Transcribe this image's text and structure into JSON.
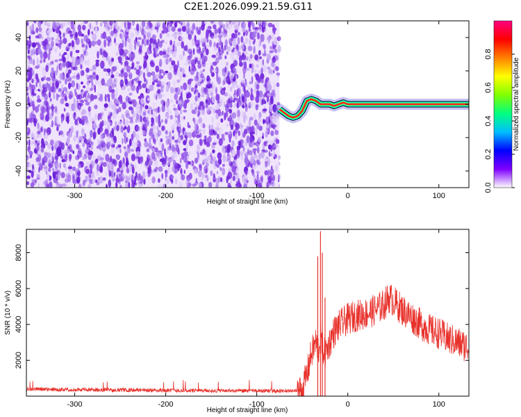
{
  "title": "C2E1.2026.099.21.59.G11",
  "chart_data": [
    {
      "type": "heatmap",
      "name": "spectrogram",
      "xlabel": "Height of straight line (km)",
      "ylabel": "Frequency (Hz)",
      "xlim": [
        -353,
        133
      ],
      "ylim": [
        -50,
        50
      ],
      "x_ticks": [
        -300,
        -200,
        -100,
        0,
        100
      ],
      "y_ticks": [
        -40,
        -20,
        0,
        20,
        40
      ],
      "noise_region_x": [
        -353,
        -75
      ],
      "signal_track": {
        "x": [
          -75,
          -70,
          -65,
          -60,
          -55,
          -50,
          -45,
          -40,
          -35,
          -30,
          -25,
          -20,
          -15,
          -10,
          -5,
          0,
          10,
          20,
          30,
          40,
          50,
          60,
          70,
          80,
          90,
          100,
          110,
          120,
          133
        ],
        "freq": [
          -3,
          -5,
          -7,
          -8,
          -7,
          -4,
          2,
          3,
          2,
          0,
          0,
          0,
          -1,
          0,
          1,
          0,
          0,
          0,
          0,
          0,
          0,
          0,
          0,
          0,
          0,
          0,
          0,
          0,
          0
        ]
      },
      "colorbar": {
        "label": "Normalized spectral amplitude",
        "range": [
          0,
          1
        ],
        "ticks": [
          "0.0",
          "0.2",
          "0.4",
          "0.6",
          "0.8"
        ],
        "colors": [
          "#ffffff",
          "#7f00ff",
          "#0000ff",
          "#00bfff",
          "#00ff80",
          "#80ff00",
          "#ffff00",
          "#ff8000",
          "#ff0000",
          "#ff0080"
        ]
      },
      "colors": {
        "noise": "#7b2fe0",
        "track_core": "#ff2020",
        "track_edge": "#00ffff"
      }
    },
    {
      "type": "line",
      "name": "snr",
      "xlabel": "Height of straight line (km)",
      "ylabel": "SNR (10 * v/v)",
      "xlim": [
        -353,
        133
      ],
      "ylim": [
        0,
        9300
      ],
      "x_ticks": [
        -300,
        -200,
        -100,
        0,
        100
      ],
      "y_ticks": [
        2000,
        4000,
        6000,
        8000
      ],
      "color": "#e8302a",
      "series": [
        {
          "x": [
            -353,
            -300,
            -250,
            -200,
            -150,
            -100,
            -60,
            -50,
            -45,
            -40,
            -35,
            -32,
            -30,
            -28,
            -25,
            -20,
            -15,
            -10,
            -5,
            0,
            10,
            20,
            30,
            40,
            45,
            50,
            60,
            70,
            80,
            90,
            100,
            110,
            120,
            133
          ],
          "values": [
            350,
            320,
            300,
            280,
            260,
            250,
            250,
            300,
            1200,
            2400,
            3000,
            2600,
            3300,
            2800,
            2300,
            3000,
            3600,
            3900,
            4100,
            4300,
            4500,
            4600,
            4800,
            5100,
            5500,
            5300,
            4800,
            4400,
            4000,
            3700,
            3500,
            3200,
            3000,
            2700
          ]
        }
      ],
      "spikes": [
        {
          "x": -33,
          "value": 7800
        },
        {
          "x": -30,
          "value": 9200
        },
        {
          "x": -28,
          "value": 8000
        },
        {
          "x": -25,
          "value": 5500
        }
      ]
    }
  ]
}
